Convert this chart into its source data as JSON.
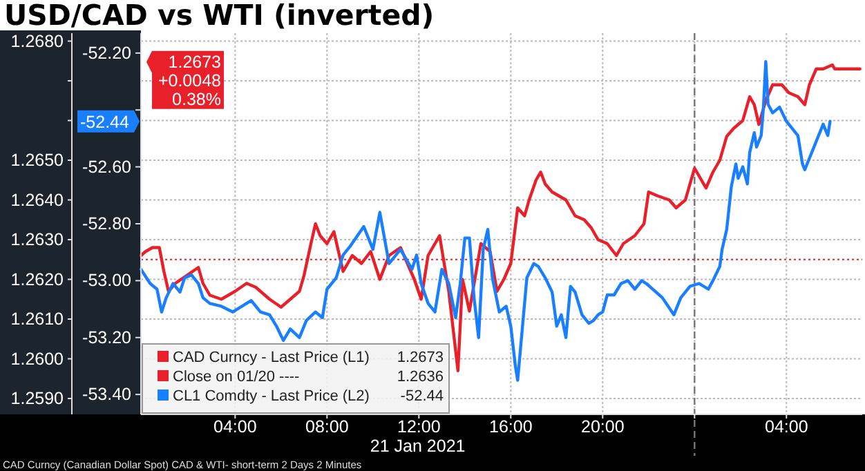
{
  "chart_data": {
    "type": "line",
    "title": "USD/CAD vs WTI (inverted)",
    "xlabel": "21 Jan 2021",
    "xlim": [
      "2021-01-20T23:54",
      "2021-01-22T07:18"
    ],
    "xticks": [
      {
        "value": "2021-01-21T04:00",
        "label": "04:00"
      },
      {
        "value": "2021-01-21T08:00",
        "label": "08:00"
      },
      {
        "value": "2021-01-21T12:00",
        "label": "12:00"
      },
      {
        "value": "2021-01-21T16:00",
        "label": "16:00"
      },
      {
        "value": "2021-01-21T20:00",
        "label": "20:00"
      },
      {
        "value": "2021-01-22T00:00",
        "label": null
      },
      {
        "value": "2021-01-22T04:00",
        "label": "04:00"
      }
    ],
    "ylim": [
      1.2586,
      1.2682
    ],
    "yticks": [
      {
        "value": 1.259,
        "label": "1.2590"
      },
      {
        "value": 1.26,
        "label": "1.2600"
      },
      {
        "value": 1.261,
        "label": "1.2610"
      },
      {
        "value": 1.262,
        "label": "1.2620"
      },
      {
        "value": 1.263,
        "label": "1.2630"
      },
      {
        "value": 1.264,
        "label": "1.2640"
      },
      {
        "value": 1.265,
        "label": "1.2650"
      },
      {
        "value": 1.266,
        "label": null
      },
      {
        "value": 1.267,
        "label": null
      },
      {
        "value": 1.268,
        "label": "1.2680"
      }
    ],
    "y2lim": [
      -53.47,
      -52.13
    ],
    "y2ticks": [
      {
        "value": -53.4,
        "label": "-53.40"
      },
      {
        "value": -53.2,
        "label": "-53.20"
      },
      {
        "value": -53,
        "label": "-53.00"
      },
      {
        "value": -52.8,
        "label": "-52.80"
      },
      {
        "value": -52.6,
        "label": "-52.60"
      },
      {
        "value": -52.4,
        "label": null
      },
      {
        "value": -52.2,
        "label": "-52.20"
      }
    ],
    "grid": true,
    "legend": "bottom left",
    "marker": "none",
    "line_style": "solid",
    "series": [
      {
        "name": "CAD Curncy - Last Price (L1)",
        "color": "#e8202a",
        "axis": "y",
        "x": [
          "2021-01-20T23:54",
          "2021-01-21T00:06",
          "2021-01-21T00:24",
          "2021-01-21T00:42",
          "2021-01-21T00:54",
          "2021-01-21T01:06",
          "2021-01-21T01:24",
          "2021-01-21T01:54",
          "2021-01-21T02:24",
          "2021-01-21T02:36",
          "2021-01-21T02:54",
          "2021-01-21T03:24",
          "2021-01-21T04:00",
          "2021-01-21T04:30",
          "2021-01-21T04:54",
          "2021-01-21T05:30",
          "2021-01-21T06:00",
          "2021-01-21T06:24",
          "2021-01-21T06:48",
          "2021-01-21T07:00",
          "2021-01-21T07:18",
          "2021-01-21T07:30",
          "2021-01-21T07:42",
          "2021-01-21T08:00",
          "2021-01-21T08:18",
          "2021-01-21T08:42",
          "2021-01-21T09:06",
          "2021-01-21T09:30",
          "2021-01-21T09:54",
          "2021-01-21T10:18",
          "2021-01-21T10:42",
          "2021-01-21T11:12",
          "2021-01-21T11:48",
          "2021-01-21T12:06",
          "2021-01-21T12:24",
          "2021-01-21T12:54",
          "2021-01-21T13:18",
          "2021-01-21T13:42",
          "2021-01-21T13:54",
          "2021-01-21T14:12",
          "2021-01-21T14:42",
          "2021-01-21T15:06",
          "2021-01-21T15:24",
          "2021-01-21T15:42",
          "2021-01-21T16:00",
          "2021-01-21T16:18",
          "2021-01-21T16:36",
          "2021-01-21T16:48",
          "2021-01-21T17:06",
          "2021-01-21T17:18",
          "2021-01-21T17:30",
          "2021-01-21T17:48",
          "2021-01-21T18:06",
          "2021-01-21T18:24",
          "2021-01-21T18:48",
          "2021-01-21T19:12",
          "2021-01-21T19:30",
          "2021-01-21T19:48",
          "2021-01-21T20:12",
          "2021-01-21T20:36",
          "2021-01-21T20:54",
          "2021-01-21T21:24",
          "2021-01-21T21:48",
          "2021-01-21T22:00",
          "2021-01-21T22:24",
          "2021-01-21T22:54",
          "2021-01-21T23:12",
          "2021-01-21T23:36",
          "2021-01-22T00:00",
          "2021-01-22T00:18",
          "2021-01-22T00:30",
          "2021-01-22T00:48",
          "2021-01-22T01:06",
          "2021-01-22T01:24",
          "2021-01-22T01:42",
          "2021-01-22T02:06",
          "2021-01-22T02:24",
          "2021-01-22T02:36",
          "2021-01-22T02:48",
          "2021-01-22T03:06",
          "2021-01-22T03:24",
          "2021-01-22T03:48",
          "2021-01-22T04:06",
          "2021-01-22T04:30",
          "2021-01-22T04:48",
          "2021-01-22T05:00",
          "2021-01-22T05:18",
          "2021-01-22T05:36",
          "2021-01-22T06:00",
          "2021-01-22T06:06",
          "2021-01-22T07:12"
        ],
        "values": [
          1.2626,
          1.2627,
          1.2628,
          1.2628,
          1.2622,
          1.2617,
          1.2619,
          1.2621,
          1.2623,
          1.2619,
          1.2616,
          1.2615,
          1.2617,
          1.2619,
          1.2618,
          1.2615,
          1.2613,
          1.2615,
          1.2617,
          1.2621,
          1.2629,
          1.2634,
          1.2631,
          1.2629,
          1.2632,
          1.2622,
          1.2626,
          1.2624,
          1.2627,
          1.262,
          1.2626,
          1.2628,
          1.262,
          1.2615,
          1.2626,
          1.2631,
          1.2617,
          1.2597,
          1.262,
          1.2612,
          1.2629,
          1.2627,
          1.2617,
          1.262,
          1.2624,
          1.2638,
          1.2636,
          1.264,
          1.2645,
          1.2647,
          1.2644,
          1.2642,
          1.2641,
          1.264,
          1.2636,
          1.2635,
          1.2633,
          1.263,
          1.2629,
          1.2626,
          1.2629,
          1.2631,
          1.2634,
          1.2642,
          1.2641,
          1.264,
          1.2638,
          1.264,
          1.2648,
          1.2645,
          1.2643,
          1.2647,
          1.265,
          1.2656,
          1.2658,
          1.266,
          1.2666,
          1.2664,
          1.2659,
          1.2665,
          1.2669,
          1.2669,
          1.2667,
          1.2666,
          1.2664,
          1.2669,
          1.2673,
          1.2673,
          1.2674,
          1.2673,
          1.2673
        ]
      },
      {
        "name": "CL1 Comdty - Last Price (L2)",
        "color": "#1a7fff",
        "axis": "y2",
        "x": [
          "2021-01-20T23:54",
          "2021-01-21T00:18",
          "2021-01-21T00:36",
          "2021-01-21T00:48",
          "2021-01-21T01:00",
          "2021-01-21T01:18",
          "2021-01-21T01:36",
          "2021-01-21T01:48",
          "2021-01-21T02:06",
          "2021-01-21T02:24",
          "2021-01-21T02:36",
          "2021-01-21T02:54",
          "2021-01-21T03:24",
          "2021-01-21T03:54",
          "2021-01-21T04:18",
          "2021-01-21T04:42",
          "2021-01-21T05:06",
          "2021-01-21T05:30",
          "2021-01-21T05:48",
          "2021-01-21T06:06",
          "2021-01-21T06:24",
          "2021-01-21T06:48",
          "2021-01-21T07:06",
          "2021-01-21T07:30",
          "2021-01-21T07:48",
          "2021-01-21T08:00",
          "2021-01-21T08:24",
          "2021-01-21T08:42",
          "2021-01-21T09:00",
          "2021-01-21T09:36",
          "2021-01-21T10:00",
          "2021-01-21T10:18",
          "2021-01-21T10:42",
          "2021-01-21T11:12",
          "2021-01-21T11:42",
          "2021-01-21T11:54",
          "2021-01-21T12:06",
          "2021-01-21T12:24",
          "2021-01-21T12:42",
          "2021-01-21T13:00",
          "2021-01-21T13:18",
          "2021-01-21T13:36",
          "2021-01-21T13:48",
          "2021-01-21T14:00",
          "2021-01-21T14:12",
          "2021-01-21T14:24",
          "2021-01-21T14:36",
          "2021-01-21T14:48",
          "2021-01-21T15:00",
          "2021-01-21T15:12",
          "2021-01-21T15:30",
          "2021-01-21T15:48",
          "2021-01-21T16:00",
          "2021-01-21T16:12",
          "2021-01-21T16:18",
          "2021-01-21T16:30",
          "2021-01-21T16:42",
          "2021-01-21T17:00",
          "2021-01-21T17:12",
          "2021-01-21T17:30",
          "2021-01-21T17:48",
          "2021-01-21T18:00",
          "2021-01-21T18:12",
          "2021-01-21T18:24",
          "2021-01-21T18:36",
          "2021-01-21T18:48",
          "2021-01-21T19:06",
          "2021-01-21T19:24",
          "2021-01-21T19:36",
          "2021-01-21T19:48",
          "2021-01-21T20:00",
          "2021-01-21T20:12",
          "2021-01-21T20:30",
          "2021-01-21T20:48",
          "2021-01-21T21:06",
          "2021-01-21T21:24",
          "2021-01-21T21:42",
          "2021-01-21T21:54",
          "2021-01-21T22:36",
          "2021-01-21T23:06",
          "2021-01-21T23:24",
          "2021-01-21T23:48",
          "2021-01-22T00:12",
          "2021-01-22T00:36",
          "2021-01-22T00:48",
          "2021-01-22T01:06",
          "2021-01-22T01:12",
          "2021-01-22T01:24",
          "2021-01-22T01:36",
          "2021-01-22T01:48",
          "2021-01-22T01:54",
          "2021-01-22T02:06",
          "2021-01-22T02:18",
          "2021-01-22T02:24",
          "2021-01-22T02:36",
          "2021-01-22T02:42",
          "2021-01-22T02:54",
          "2021-01-22T03:00",
          "2021-01-22T03:06",
          "2021-01-22T03:12",
          "2021-01-22T03:24",
          "2021-01-22T03:42",
          "2021-01-22T04:00",
          "2021-01-22T04:12",
          "2021-01-22T04:30",
          "2021-01-22T04:42",
          "2021-01-22T04:48",
          "2021-01-22T05:06",
          "2021-01-22T05:24",
          "2021-01-22T05:36",
          "2021-01-22T05:48",
          "2021-01-22T05:54"
        ],
        "values": [
          -52.96,
          -53.01,
          -53.03,
          -53.11,
          -53.06,
          -53.01,
          -53.04,
          -52.99,
          -52.98,
          -53.01,
          -53.06,
          -53.08,
          -53.09,
          -53.11,
          -53.09,
          -53.07,
          -53.11,
          -53.12,
          -53.16,
          -53.21,
          -53.17,
          -53.2,
          -53.14,
          -53.11,
          -53.13,
          -53.03,
          -52.99,
          -52.91,
          -52.88,
          -52.81,
          -52.89,
          -52.76,
          -52.94,
          -52.89,
          -52.96,
          -52.91,
          -53.01,
          -53.08,
          -53.11,
          -52.96,
          -53.01,
          -53.13,
          -53.01,
          -52.85,
          -52.85,
          -53.06,
          -53.2,
          -52.89,
          -52.82,
          -52.99,
          -53.11,
          -53.09,
          -53.16,
          -53.3,
          -53.35,
          -53.17,
          -52.99,
          -52.94,
          -52.95,
          -52.99,
          -53.04,
          -53.16,
          -53.12,
          -53.2,
          -53.02,
          -53.04,
          -53.12,
          -53.15,
          -53.14,
          -53.12,
          -53.11,
          -53.05,
          -53.05,
          -53.01,
          -53.0,
          -53.03,
          -53.0,
          -53.01,
          -53.06,
          -53.12,
          -53.06,
          -53.02,
          -53.01,
          -53.03,
          -53.0,
          -52.95,
          -52.89,
          -52.82,
          -52.67,
          -52.59,
          -52.64,
          -52.6,
          -52.66,
          -52.55,
          -52.48,
          -52.53,
          -52.49,
          -52.39,
          -52.23,
          -52.38,
          -52.41,
          -52.39,
          -52.44,
          -52.46,
          -52.49,
          -52.59,
          -52.61,
          -52.55,
          -52.49,
          -52.45,
          -52.49,
          -52.44
        ]
      }
    ],
    "ref_lines": [
      {
        "axis": "x",
        "value": "2021-01-22T00:00",
        "color": "#777777",
        "line_style": "dashed"
      },
      {
        "axis": "y",
        "value": 1.2625,
        "label": "Close on 01/20 ----",
        "color": "#e8202a",
        "line_style": "dotted"
      }
    ],
    "annotations": [
      "1.2673",
      "+0.0048",
      "0.38%",
      "-52.44",
      "1.2673",
      "1.2636",
      "-52.44",
      "CAD Curncy (Canadian Dollar Spot) CAD & WTI- short-term 2 Days 2 Minutes"
    ]
  }
}
